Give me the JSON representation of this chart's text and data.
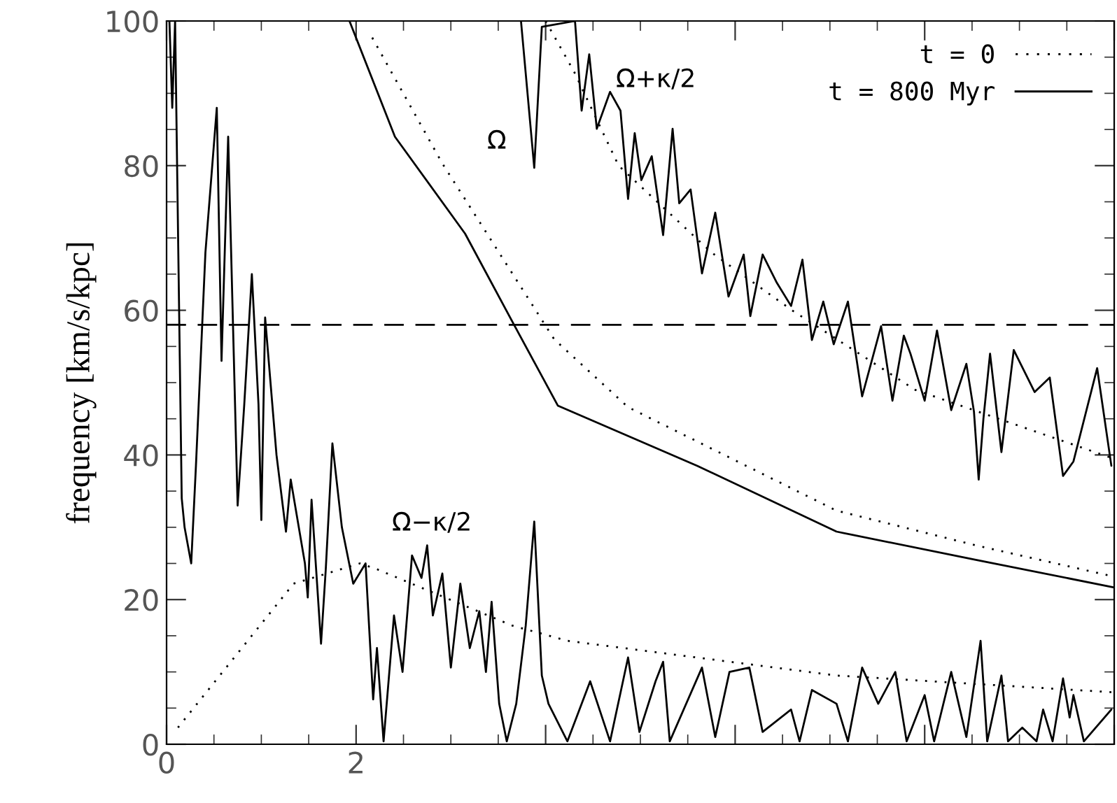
{
  "chart_data": {
    "type": "line",
    "ylabel": "frequency [km/s/kpc]",
    "xlim": [
      0,
      10
    ],
    "ylim": [
      0,
      100
    ],
    "xticks": [
      0,
      2,
      {
        "value": 4,
        "label": null
      },
      {
        "value": 6,
        "label": null
      },
      {
        "value": 8,
        "label": null
      },
      {
        "value": 10,
        "label": null
      }
    ],
    "yticks": [
      0,
      20,
      40,
      60,
      80,
      100
    ],
    "grid": false,
    "legend": "top right",
    "marker": "none",
    "ref_lines": [
      {
        "axis": "y",
        "value": 58,
        "line_style": "dashed",
        "color": "#000000"
      }
    ],
    "annotations": [
      "Ω",
      "Ω+κ/2",
      "Ω−κ/2"
    ],
    "series": [
      {
        "name": "t = 0",
        "color": "#000000",
        "line_style": "dotted",
        "x": [
          2.17,
          2.91,
          4.09,
          4.87,
          7.07,
          8.54,
          9.99
        ],
        "values": [
          97.7,
          80.3,
          56,
          46.6,
          32.3,
          27.5,
          23.2
        ]
      },
      {
        "name": "t = 800 Myr",
        "color": "#000000",
        "line_style": "solid",
        "x": [
          1.93,
          2.41,
          3.15,
          3.65,
          4.13,
          5.6,
          7.07,
          8.54,
          9.99
        ],
        "values": [
          100,
          84,
          70.6,
          58.4,
          46.8,
          38.5,
          29.4,
          25.5,
          21.7
        ]
      },
      {
        "color": "#000000",
        "line_style": "dotted",
        "x": [
          4.0,
          4.3,
          4.77,
          5.75,
          6.6,
          7.9,
          9.97
        ],
        "values": [
          100,
          93,
          80,
          68,
          60,
          49,
          39.6
        ]
      },
      {
        "color": "#000000",
        "line_style": "dotted",
        "x": [
          0.12,
          1.34,
          2.04,
          2.22,
          3.65,
          4.23,
          7.07,
          9.97
        ],
        "values": [
          2.3,
          22.2,
          25,
          24.2,
          16.4,
          14.3,
          9.5,
          7.2
        ]
      },
      {
        "color": "#000000",
        "line_style": "solid",
        "x": [
          3.74,
          3.88,
          3.96,
          4.31,
          4.38,
          4.46,
          4.54,
          4.68,
          4.79,
          4.87,
          4.94,
          5.01,
          5.12,
          5.24,
          5.34,
          5.41,
          5.53,
          5.65,
          5.79,
          5.93,
          6.09,
          6.16,
          6.29,
          6.44,
          6.59,
          6.71,
          6.81,
          6.93,
          7.04,
          7.19,
          7.34,
          7.54,
          7.66,
          7.78,
          7.85,
          8.0,
          8.13,
          8.28,
          8.44,
          8.52,
          8.57,
          8.62,
          8.69,
          8.81,
          8.94,
          9.16,
          9.32,
          9.46,
          9.57,
          9.82,
          9.97
        ],
        "values": [
          100,
          79.7,
          99.2,
          100,
          87.6,
          95.4,
          85.1,
          90.2,
          87.6,
          75.4,
          84.5,
          78,
          81.3,
          70.4,
          85.1,
          74.8,
          76.7,
          65.1,
          73.5,
          61.9,
          67.7,
          59.2,
          67.7,
          63.8,
          60.6,
          67,
          55.9,
          61.2,
          55.3,
          61.2,
          48.1,
          57.8,
          47.5,
          56.5,
          54,
          47.5,
          57.2,
          46.2,
          52.6,
          46,
          36.6,
          45,
          54,
          40.4,
          54.5,
          48.7,
          50.7,
          37.1,
          39.1,
          52,
          38.5
        ]
      },
      {
        "color": "#000000",
        "line_style": "solid",
        "x": [
          0.03,
          0.06,
          0.09,
          0.16,
          0.19,
          0.26,
          0.31,
          0.41,
          0.53,
          0.58,
          0.65,
          0.75,
          0.82,
          0.9,
          0.97,
          1.0,
          1.04,
          1.16,
          1.26,
          1.31,
          1.46,
          1.49,
          1.53,
          1.63,
          1.68,
          1.75,
          1.85,
          1.97,
          2.1,
          2.18,
          2.22,
          2.29,
          2.4,
          2.49,
          2.59,
          2.69,
          2.75,
          2.81,
          2.91,
          3.0,
          3.1,
          3.2,
          3.3,
          3.37,
          3.43,
          3.51,
          3.59,
          3.69,
          3.79,
          3.88,
          3.96,
          4.03,
          4.23,
          4.47,
          4.68,
          4.87,
          4.99,
          5.16,
          5.24,
          5.31,
          5.65,
          5.79,
          5.94,
          6.15,
          6.29,
          6.59,
          6.68,
          6.81,
          7.07,
          7.19,
          7.34,
          7.51,
          7.69,
          7.81,
          8.0,
          8.1,
          8.28,
          8.44,
          8.59,
          8.66,
          8.81,
          8.88,
          9.03,
          9.18,
          9.25,
          9.35,
          9.46,
          9.53,
          9.57,
          9.68,
          9.97
        ],
        "values": [
          100,
          88,
          100,
          34,
          30,
          25,
          38.5,
          68,
          88,
          53,
          84,
          33,
          47,
          65,
          47,
          31,
          59,
          40,
          29.4,
          36.6,
          25,
          20.3,
          33.8,
          13.9,
          24.2,
          41.6,
          30,
          22.2,
          25,
          6.2,
          13.3,
          0.4,
          17.8,
          10,
          26.1,
          23,
          27.5,
          17.8,
          23.6,
          10.6,
          22.2,
          13.3,
          18.4,
          10,
          19.7,
          5.6,
          0.4,
          5.6,
          16.4,
          30.8,
          9.5,
          5.6,
          0.4,
          8.7,
          0.4,
          12,
          1.7,
          8.7,
          11.4,
          0.4,
          10.6,
          1,
          10,
          10.6,
          1.7,
          4.8,
          0.4,
          7.5,
          5.6,
          0.4,
          10.6,
          5.6,
          10,
          0.4,
          6.8,
          0.4,
          10,
          1,
          14.3,
          0.4,
          9.5,
          0.4,
          2.3,
          0.4,
          4.8,
          0.4,
          9.1,
          3.7,
          6.8,
          0.4,
          4.8
        ]
      }
    ]
  }
}
